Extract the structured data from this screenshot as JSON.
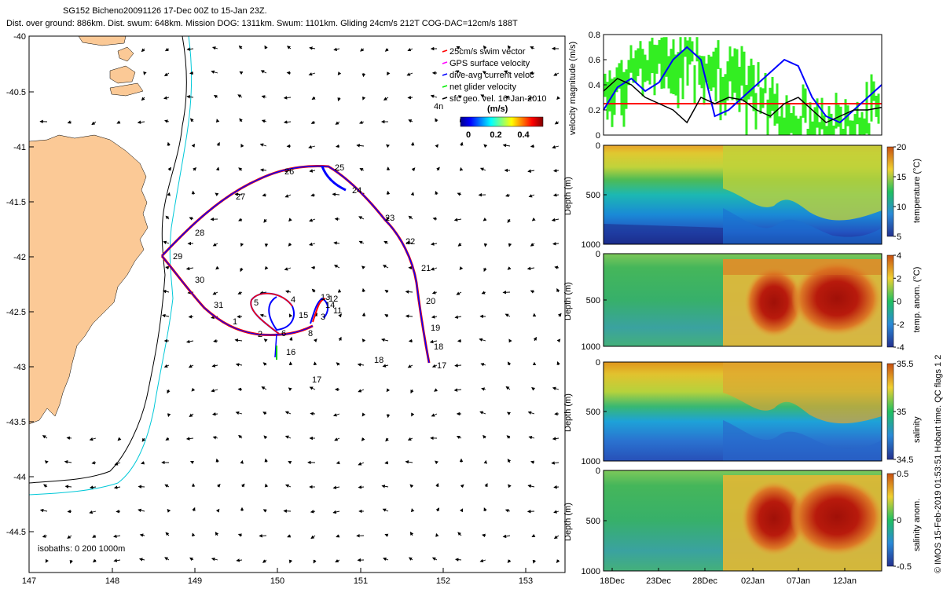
{
  "header": {
    "title": "SG152 Bicheno20091126 17-Dec 00Z to 15-Jan 23Z.",
    "subtitle": "Dist. over ground: 886km. Dist. swum: 648km. Mission DOG: 1311km. Swum: 1101km. Gliding 24cm/s 212T COG-DAC=12cm/s 188T"
  },
  "copyright": "© IMOS 15-Feb-2019 01:53:51 Hobart time. QC flags 1  2",
  "map": {
    "x_ticks": [
      "147",
      "148",
      "149",
      "150",
      "151",
      "152",
      "153"
    ],
    "y_ticks": [
      "-40",
      "-40.5",
      "-41",
      "-41.5",
      "-42",
      "-42.5",
      "-43",
      "-43.5",
      "-44",
      "-44.5"
    ],
    "legend": [
      {
        "label": "25cm/s swim vector",
        "color": "#ff0000"
      },
      {
        "label": "GPS surface velocity",
        "color": "#ff00ff"
      },
      {
        "label": "dive-avg current veloc",
        "color": "#0000ff"
      },
      {
        "label": "net glider velocity",
        "color": "#00ee00"
      },
      {
        "label": "sfc geo. vel. 16-Jan-2010",
        "color": "#000000"
      }
    ],
    "colorbar_title": "(m/s)",
    "colorbar_ticks": [
      "0",
      "0.2",
      "0.4"
    ],
    "isobaths": "isobaths: 0   200  1000m",
    "day_labels": [
      {
        "t": "1"
      },
      {
        "t": "2"
      },
      {
        "t": "3"
      },
      {
        "t": "4"
      },
      {
        "t": "5"
      },
      {
        "t": "6"
      },
      {
        "t": "8"
      },
      {
        "t": "11"
      },
      {
        "t": "12"
      },
      {
        "t": "13"
      },
      {
        "t": "14"
      },
      {
        "t": "15"
      },
      {
        "t": "16"
      },
      {
        "t": "17"
      },
      {
        "t": "17"
      },
      {
        "t": "18"
      },
      {
        "t": "18"
      },
      {
        "t": "19"
      },
      {
        "t": "20"
      },
      {
        "t": "21"
      },
      {
        "t": "22"
      },
      {
        "t": "23"
      },
      {
        "t": "24"
      },
      {
        "t": "25"
      },
      {
        "t": "26"
      },
      {
        "t": "27"
      },
      {
        "t": "28"
      },
      {
        "t": "29"
      },
      {
        "t": "30"
      },
      {
        "t": "31"
      },
      {
        "t": "4n"
      }
    ]
  },
  "velocity_panel": {
    "ylabel": "velocity magnitude (m/s)",
    "y_ticks": [
      "0",
      "0.2",
      "0.4",
      "0.6",
      "0.8"
    ]
  },
  "sections": [
    {
      "ylabel": "Depth (m)",
      "y_ticks": [
        "0",
        "500",
        "1000"
      ],
      "cb_label": "temperature (°C)",
      "cb_ticks": [
        "20",
        "15",
        "10",
        "5"
      ]
    },
    {
      "ylabel": "Depth (m)",
      "y_ticks": [
        "0",
        "500",
        "1000"
      ],
      "cb_label": "temp. anom. (°C)",
      "cb_ticks": [
        "4",
        "2",
        "0",
        "-2",
        "-4"
      ]
    },
    {
      "ylabel": "Depth (m)",
      "y_ticks": [
        "0",
        "500",
        "1000"
      ],
      "cb_label": "salinity",
      "cb_ticks": [
        "35.5",
        "35",
        "34.5"
      ]
    },
    {
      "ylabel": "Depth (m)",
      "y_ticks": [
        "0",
        "500",
        "1000"
      ],
      "cb_label": "salinity anom.",
      "cb_ticks": [
        "0.5",
        "0",
        "-0.5"
      ]
    }
  ],
  "time_ticks": [
    "18Dec",
    "23Dec",
    "28Dec",
    "02Jan",
    "07Jan",
    "12Jan"
  ],
  "chart_data": [
    {
      "type": "line",
      "title": "",
      "ylabel": "velocity magnitude (m/s)",
      "ylim": [
        0,
        0.8
      ],
      "series": [
        {
          "name": "swim speed (constant)",
          "color": "#ff0000",
          "values": [
            0.25,
            0.25
          ]
        },
        {
          "name": "dive-avg current",
          "color": "#0000ff",
          "values": [
            0.2,
            0.38,
            0.45,
            0.35,
            0.42,
            0.6,
            0.7,
            0.6,
            0.15,
            0.2,
            0.3,
            0.4,
            0.5,
            0.6,
            0.55,
            0.3,
            0.15,
            0.1,
            0.2,
            0.3,
            0.4
          ]
        },
        {
          "name": "surface geostrophic",
          "color": "#000000",
          "values": [
            0.35,
            0.45,
            0.4,
            0.3,
            0.25,
            0.2,
            0.1,
            0.3,
            0.25,
            0.3,
            0.28,
            0.2,
            0.15,
            0.25,
            0.3,
            0.2,
            0.1,
            0.15,
            0.2,
            0.2,
            0.22
          ]
        }
      ]
    }
  ]
}
